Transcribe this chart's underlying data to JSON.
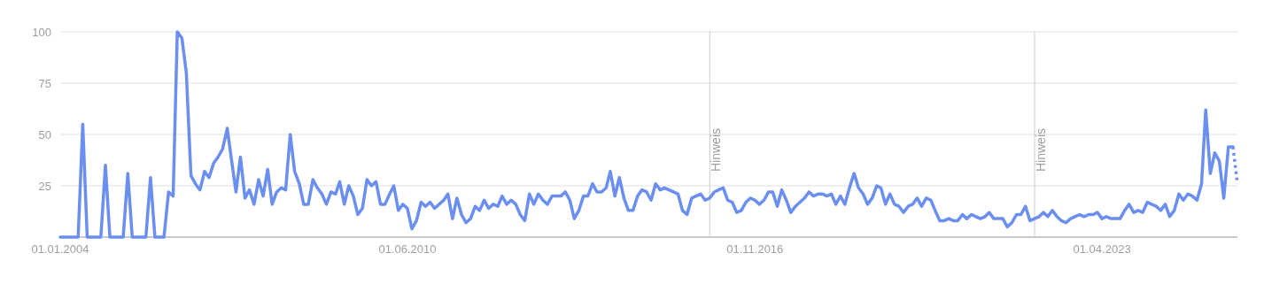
{
  "chart_data": {
    "type": "line",
    "xlim": [
      "2004-01",
      "2025-10"
    ],
    "xticks": [
      {
        "value": "2004-01-01",
        "label": "01.01.2004"
      },
      {
        "value": "2010-06-01",
        "label": "01.06.2010"
      },
      {
        "value": "2016-11-01",
        "label": "01.11.2016"
      },
      {
        "value": "2023-04-01",
        "label": "01.04.2023"
      }
    ],
    "ylim": [
      0,
      100
    ],
    "yticks": [
      {
        "value": 0,
        "label": null
      },
      25,
      50,
      75,
      100
    ],
    "grid": "y",
    "ref_lines": [
      {
        "axis": "x",
        "value": "2016-01",
        "label": "Hinweis",
        "color": "#cccccc"
      },
      {
        "axis": "x",
        "value": "2022-01",
        "label": "Hinweis",
        "color": "#cccccc"
      }
    ],
    "series": [
      {
        "color": "#6b8ff0",
        "line_style": "solid",
        "x": [
          "2004-01",
          "2004-02",
          "2004-03",
          "2004-04",
          "2004-05",
          "2004-06",
          "2004-07",
          "2004-08",
          "2004-09",
          "2004-10",
          "2004-11",
          "2004-12",
          "2005-01",
          "2005-02",
          "2005-03",
          "2005-04",
          "2005-05",
          "2005-06",
          "2005-07",
          "2005-08",
          "2005-09",
          "2005-10",
          "2005-11",
          "2005-12",
          "2006-01",
          "2006-02",
          "2006-03",
          "2006-04",
          "2006-05",
          "2006-06",
          "2006-07",
          "2006-08",
          "2006-09",
          "2006-10",
          "2006-11",
          "2006-12",
          "2007-01",
          "2007-02",
          "2007-03",
          "2007-04",
          "2007-05",
          "2007-06",
          "2007-07",
          "2007-08",
          "2007-09",
          "2007-10",
          "2007-11",
          "2007-12",
          "2008-01",
          "2008-02",
          "2008-03",
          "2008-04",
          "2008-05",
          "2008-06",
          "2008-07",
          "2008-08",
          "2008-09",
          "2008-10",
          "2008-11",
          "2008-12",
          "2009-01",
          "2009-02",
          "2009-03",
          "2009-04",
          "2009-05",
          "2009-06",
          "2009-07",
          "2009-08",
          "2009-09",
          "2009-10",
          "2009-11",
          "2009-12",
          "2010-01",
          "2010-02",
          "2010-03",
          "2010-04",
          "2010-05",
          "2010-06",
          "2010-07",
          "2010-08",
          "2010-09",
          "2010-10",
          "2010-11",
          "2010-12",
          "2011-01",
          "2011-02",
          "2011-03",
          "2011-04",
          "2011-05",
          "2011-06",
          "2011-07",
          "2011-08",
          "2011-09",
          "2011-10",
          "2011-11",
          "2011-12",
          "2012-01",
          "2012-02",
          "2012-03",
          "2012-04",
          "2012-05",
          "2012-06",
          "2012-07",
          "2012-08",
          "2012-09",
          "2012-10",
          "2012-11",
          "2012-12",
          "2013-01",
          "2013-02",
          "2013-03",
          "2013-04",
          "2013-05",
          "2013-06",
          "2013-07",
          "2013-08",
          "2013-09",
          "2013-10",
          "2013-11",
          "2013-12",
          "2014-01",
          "2014-02",
          "2014-03",
          "2014-04",
          "2014-05",
          "2014-06",
          "2014-07",
          "2014-08",
          "2014-09",
          "2014-10",
          "2014-11",
          "2014-12",
          "2015-01",
          "2015-02",
          "2015-03",
          "2015-04",
          "2015-05",
          "2015-06",
          "2015-07",
          "2015-08",
          "2015-09",
          "2015-10",
          "2015-11",
          "2015-12",
          "2016-01",
          "2016-02",
          "2016-03",
          "2016-04",
          "2016-05",
          "2016-06",
          "2016-07",
          "2016-08",
          "2016-09",
          "2016-10",
          "2016-11",
          "2016-12",
          "2017-01",
          "2017-02",
          "2017-03",
          "2017-04",
          "2017-05",
          "2017-06",
          "2017-07",
          "2017-08",
          "2017-09",
          "2017-10",
          "2017-11",
          "2017-12",
          "2018-01",
          "2018-02",
          "2018-03",
          "2018-04",
          "2018-05",
          "2018-06",
          "2018-07",
          "2018-08",
          "2018-09",
          "2018-10",
          "2018-11",
          "2018-12",
          "2019-01",
          "2019-02",
          "2019-03",
          "2019-04",
          "2019-05",
          "2019-06",
          "2019-07",
          "2019-08",
          "2019-09",
          "2019-10",
          "2019-11",
          "2019-12",
          "2020-01",
          "2020-02",
          "2020-03",
          "2020-04",
          "2020-05",
          "2020-06",
          "2020-07",
          "2020-08",
          "2020-09",
          "2020-10",
          "2020-11",
          "2020-12",
          "2021-01",
          "2021-02",
          "2021-03",
          "2021-04",
          "2021-05",
          "2021-06",
          "2021-07",
          "2021-08",
          "2021-09",
          "2021-10",
          "2021-11",
          "2021-12",
          "2022-01",
          "2022-02",
          "2022-03",
          "2022-04",
          "2022-05",
          "2022-06",
          "2022-07",
          "2022-08",
          "2022-09",
          "2022-10",
          "2022-11",
          "2022-12",
          "2023-01",
          "2023-02",
          "2023-03",
          "2023-04",
          "2023-05",
          "2023-06",
          "2023-07",
          "2023-08",
          "2023-09",
          "2023-10",
          "2023-11",
          "2023-12",
          "2024-01",
          "2024-02",
          "2024-03",
          "2024-04",
          "2024-05",
          "2024-06",
          "2024-07",
          "2024-08",
          "2024-09",
          "2024-10",
          "2024-11",
          "2024-12",
          "2025-01",
          "2025-02",
          "2025-03",
          "2025-04",
          "2025-05",
          "2025-06",
          "2025-07",
          "2025-08",
          "2025-09"
        ],
        "values": [
          0,
          0,
          0,
          0,
          0,
          55,
          0,
          0,
          0,
          0,
          35,
          0,
          0,
          0,
          0,
          31,
          0,
          0,
          0,
          0,
          29,
          0,
          0,
          0,
          22,
          20,
          100,
          97,
          80,
          30,
          26,
          23,
          32,
          29,
          36,
          39,
          43,
          53,
          38,
          22,
          39,
          19,
          23,
          16,
          28,
          20,
          33,
          16,
          22,
          24,
          23,
          50,
          32,
          26,
          16,
          16,
          28,
          24,
          21,
          16,
          22,
          21,
          27,
          16,
          25,
          20,
          11,
          14,
          28,
          25,
          27,
          16,
          16,
          21,
          25,
          13,
          16,
          14,
          4,
          8,
          17,
          15,
          17,
          14,
          16,
          18,
          21,
          9,
          19,
          11,
          7,
          9,
          15,
          13,
          18,
          14,
          16,
          15,
          20,
          16,
          18,
          16,
          11,
          8,
          21,
          16,
          21,
          18,
          16,
          20,
          20,
          20,
          22,
          18,
          9,
          13,
          20,
          20,
          26,
          22,
          22,
          24,
          32,
          20,
          29,
          19,
          13,
          13,
          20,
          23,
          22,
          18,
          26,
          23,
          24,
          23,
          22,
          21,
          13,
          11,
          19,
          20,
          21,
          18,
          19,
          22,
          23,
          24,
          18,
          17,
          12,
          13,
          17,
          19,
          18,
          16,
          18,
          22,
          22,
          15,
          23,
          18,
          12,
          15,
          17,
          19,
          22,
          20,
          21,
          21,
          20,
          21,
          16,
          20,
          16,
          24,
          31,
          24,
          21,
          16,
          19,
          25,
          24,
          16,
          21,
          16,
          15,
          12,
          15,
          16,
          19,
          15,
          19,
          18,
          13,
          8,
          8,
          9,
          8,
          8,
          11,
          9,
          11,
          10,
          9,
          10,
          12,
          9,
          9,
          9,
          5,
          7,
          11,
          11,
          15,
          8,
          9,
          10,
          12,
          10,
          13,
          10,
          8,
          7,
          9,
          10,
          11,
          10,
          11,
          11,
          12,
          9,
          10,
          9,
          9,
          9,
          13,
          16,
          12,
          13,
          12,
          17,
          16,
          15,
          13,
          16,
          10,
          13,
          21,
          18,
          21,
          20,
          18,
          26,
          62,
          31,
          41,
          37,
          19,
          44,
          44
        ]
      },
      {
        "color": "#6b8ff0",
        "line_style": "dotted",
        "x": [
          "2025-09",
          "2025-10"
        ],
        "values": [
          44,
          26
        ]
      }
    ]
  }
}
